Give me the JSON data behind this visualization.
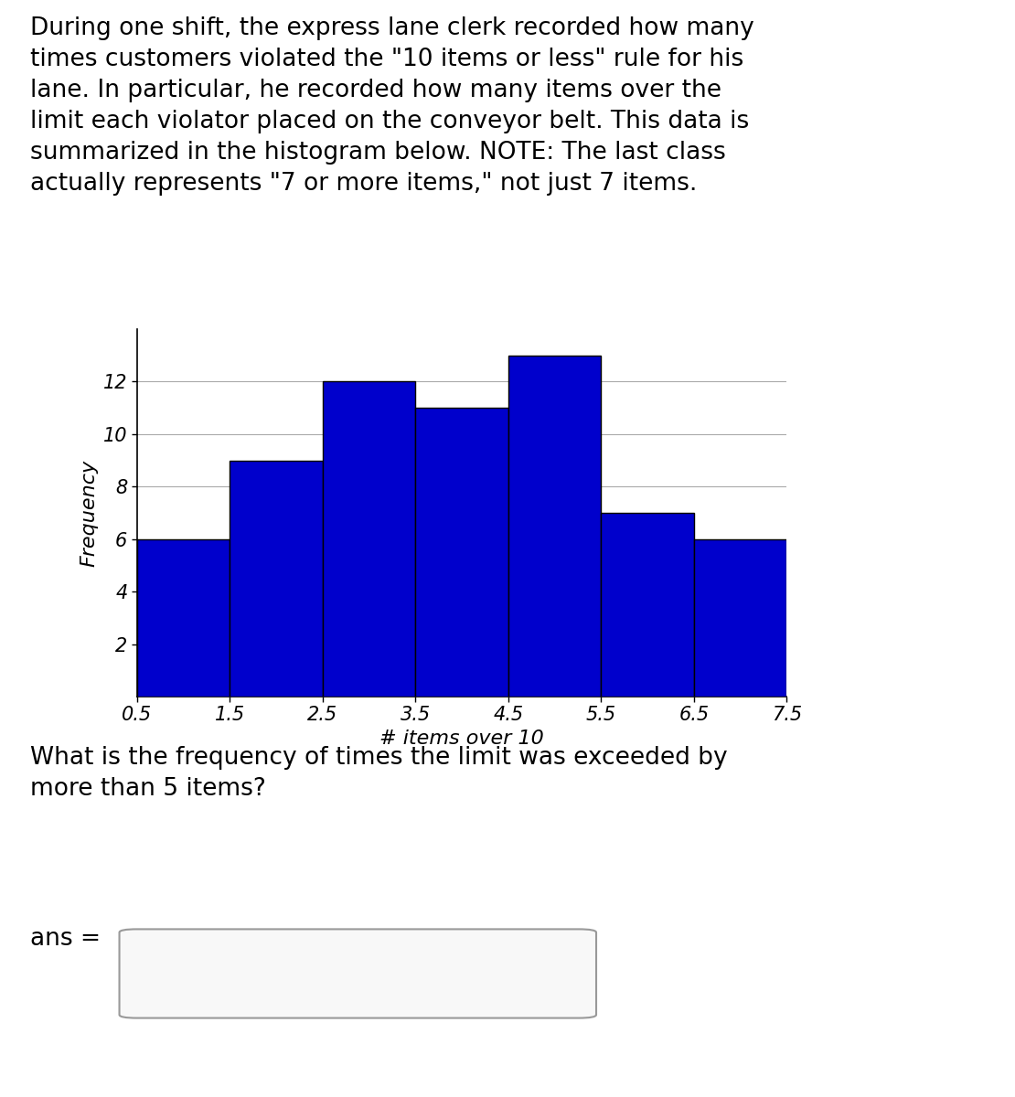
{
  "title_text": "During one shift, the express lane clerk recorded how many\ntimes customers violated the \"10 items or less\" rule for his\nlane. In particular, he recorded how many items over the\nlimit each violator placed on the conveyor belt. This data is\nsummarized in the histogram below. NOTE: The last class\nactually represents \"7 or more items,\" not just 7 items.",
  "question_text": "What is the frequency of times the limit was exceeded by\nmore than 5 items?",
  "ans_label": "ans =",
  "bar_edges": [
    0.5,
    1.5,
    2.5,
    3.5,
    4.5,
    5.5,
    6.5,
    7.5
  ],
  "bar_heights": [
    6,
    9,
    12,
    11,
    13,
    7,
    6
  ],
  "bar_color": "#0000cc",
  "bar_edgecolor": "#000000",
  "xlabel": "# items over 10",
  "ylabel": "Frequency",
  "yticks": [
    2,
    4,
    6,
    8,
    10,
    12
  ],
  "xtick_labels": [
    "0.5",
    "1.5",
    "2.5",
    "3.5",
    "4.5",
    "5.5",
    "6.5",
    "7.5"
  ],
  "ylim": [
    0,
    14
  ],
  "xlim": [
    0.5,
    7.5
  ],
  "grid_color": "#aaaaaa",
  "background_color": "#ffffff",
  "title_fontsize": 19,
  "axis_label_fontsize": 16,
  "tick_fontsize": 15,
  "question_fontsize": 19,
  "ans_fontsize": 19
}
